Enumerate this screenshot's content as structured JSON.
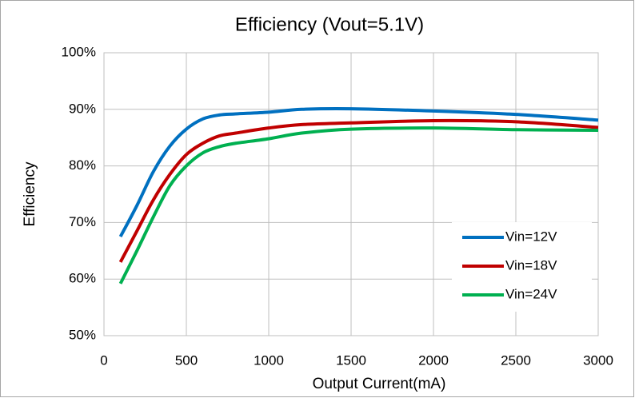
{
  "chart_data": {
    "type": "line",
    "title": "Efficiency (Vout=5.1V)",
    "xlabel": "Output Current(mA)",
    "ylabel": "Efficiency",
    "x": [
      100,
      200,
      300,
      400,
      500,
      600,
      700,
      800,
      1000,
      1200,
      1500,
      2000,
      2500,
      3000
    ],
    "series": [
      {
        "name": "Vin=12V",
        "color": "#0070c0",
        "values": [
          67.5,
          73,
          79,
          83.5,
          86.5,
          88.3,
          89,
          89.2,
          89.5,
          90,
          90.1,
          89.7,
          89.1,
          88.1
        ]
      },
      {
        "name": "Vin=18V",
        "color": "#c00000",
        "values": [
          63,
          68.5,
          74,
          78.5,
          82,
          84,
          85.3,
          85.8,
          86.7,
          87.3,
          87.6,
          88,
          87.8,
          86.8
        ]
      },
      {
        "name": "Vin=24V",
        "color": "#00b050",
        "values": [
          59.2,
          65,
          71,
          76.5,
          80,
          82.3,
          83.4,
          84,
          84.8,
          85.8,
          86.5,
          86.7,
          86.4,
          86.3
        ]
      }
    ],
    "xlim": [
      0,
      3000
    ],
    "xticks": [
      0,
      500,
      1000,
      1500,
      2000,
      2500,
      3000
    ],
    "ylim": [
      50,
      100
    ],
    "yticks": [
      {
        "value": 50,
        "label": "50%"
      },
      {
        "value": 60,
        "label": "60%"
      },
      {
        "value": 70,
        "label": "70%"
      },
      {
        "value": 80,
        "label": "80%"
      },
      {
        "value": 90,
        "label": "90%"
      },
      {
        "value": 100,
        "label": "100%"
      }
    ],
    "grid": true,
    "legend": "lower right"
  }
}
